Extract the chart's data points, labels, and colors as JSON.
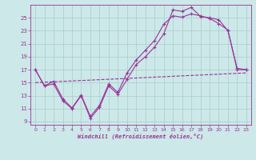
{
  "xlabel": "Windchill (Refroidissement éolien,°C)",
  "xlim": [
    -0.5,
    23.5
  ],
  "ylim": [
    8.5,
    27
  ],
  "xticks": [
    0,
    1,
    2,
    3,
    4,
    5,
    6,
    7,
    8,
    9,
    10,
    11,
    12,
    13,
    14,
    15,
    16,
    17,
    18,
    19,
    20,
    21,
    22,
    23
  ],
  "yticks": [
    9,
    11,
    13,
    15,
    17,
    19,
    21,
    23,
    25
  ],
  "background_color": "#cce8e8",
  "grid_color": "#aacccc",
  "line_color": "#993399",
  "line1_x": [
    0,
    1,
    2,
    3,
    4,
    5,
    6,
    7,
    8,
    9,
    10,
    11,
    12,
    13,
    14,
    15,
    16,
    17,
    18,
    19,
    20,
    21,
    22,
    23
  ],
  "line1_y": [
    17.0,
    14.5,
    14.8,
    12.2,
    11.0,
    13.0,
    9.5,
    11.2,
    14.5,
    13.2,
    15.5,
    17.8,
    19.0,
    20.5,
    22.5,
    26.2,
    26.0,
    26.6,
    25.2,
    25.0,
    24.7,
    23.0,
    17.2,
    17.0
  ],
  "line2_x": [
    0,
    1,
    2,
    3,
    4,
    5,
    6,
    7,
    8,
    9,
    10,
    11,
    12,
    13,
    14,
    15,
    16,
    17,
    18,
    19,
    20,
    21,
    22,
    23
  ],
  "line2_y": [
    17.0,
    14.5,
    15.2,
    12.5,
    11.1,
    13.1,
    9.8,
    11.5,
    14.8,
    13.5,
    16.5,
    18.5,
    20.0,
    21.5,
    24.0,
    25.3,
    25.1,
    25.6,
    25.3,
    24.9,
    24.1,
    23.1,
    17.0,
    17.0
  ],
  "line3_x": [
    0,
    23
  ],
  "line3_y": [
    15.0,
    16.5
  ]
}
